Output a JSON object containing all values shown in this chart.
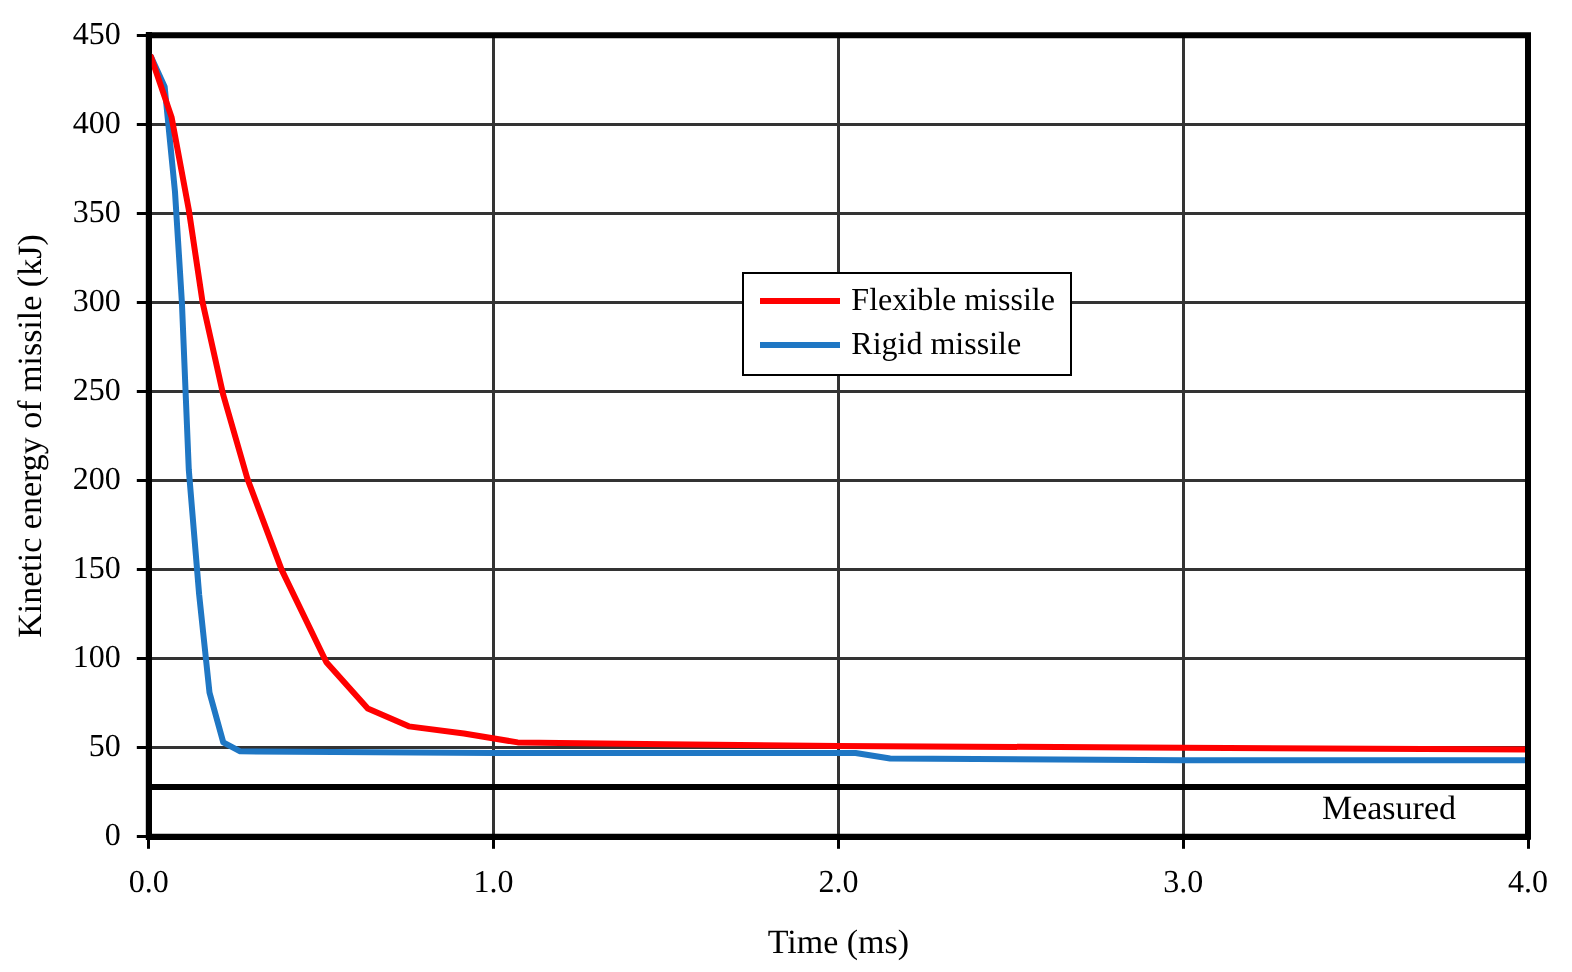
{
  "chart_data": {
    "type": "line",
    "xlabel": "Time (ms)",
    "ylabel": "Kinetic energy of missile (kJ)",
    "xlim": [
      0,
      4
    ],
    "xticks": [
      {
        "value": 0,
        "label": "0.0"
      },
      {
        "value": 1,
        "label": "1.0"
      },
      {
        "value": 2,
        "label": "2.0"
      },
      {
        "value": 3,
        "label": "3.0"
      },
      {
        "value": 4,
        "label": "4.0"
      }
    ],
    "ylim": [
      0,
      450
    ],
    "yticks": [
      0,
      50,
      100,
      150,
      200,
      250,
      300,
      350,
      400,
      450
    ],
    "grid": true,
    "legend": "center",
    "marker": "none",
    "line_style": "solid",
    "ref_lines": [
      {
        "axis": "y",
        "value": 28,
        "label": "Measured",
        "color": "#000000"
      }
    ],
    "series": [
      {
        "name": "Flexible missile",
        "color": "#ff0000",
        "x": [
          0,
          0.006,
          0.066,
          0.116,
          0.156,
          0.216,
          0.286,
          0.385,
          0.515,
          0.635,
          0.754,
          0.914,
          1.07,
          1.5,
          2.0,
          3.0,
          4.0
        ],
        "values": [
          435,
          438,
          404,
          352,
          300,
          248,
          201,
          150,
          98,
          72,
          62,
          58,
          53,
          52,
          51,
          50,
          49
        ]
      },
      {
        "name": "Rigid missile",
        "color": "#1f77c4",
        "x": [
          0,
          0.006,
          0.046,
          0.076,
          0.096,
          0.116,
          0.146,
          0.176,
          0.216,
          0.265,
          1.0,
          2.05,
          2.15,
          3.0,
          4.0
        ],
        "values": [
          435,
          438,
          421,
          362,
          300,
          206,
          136,
          81,
          53,
          48,
          47,
          47,
          44,
          43,
          43
        ]
      }
    ]
  }
}
